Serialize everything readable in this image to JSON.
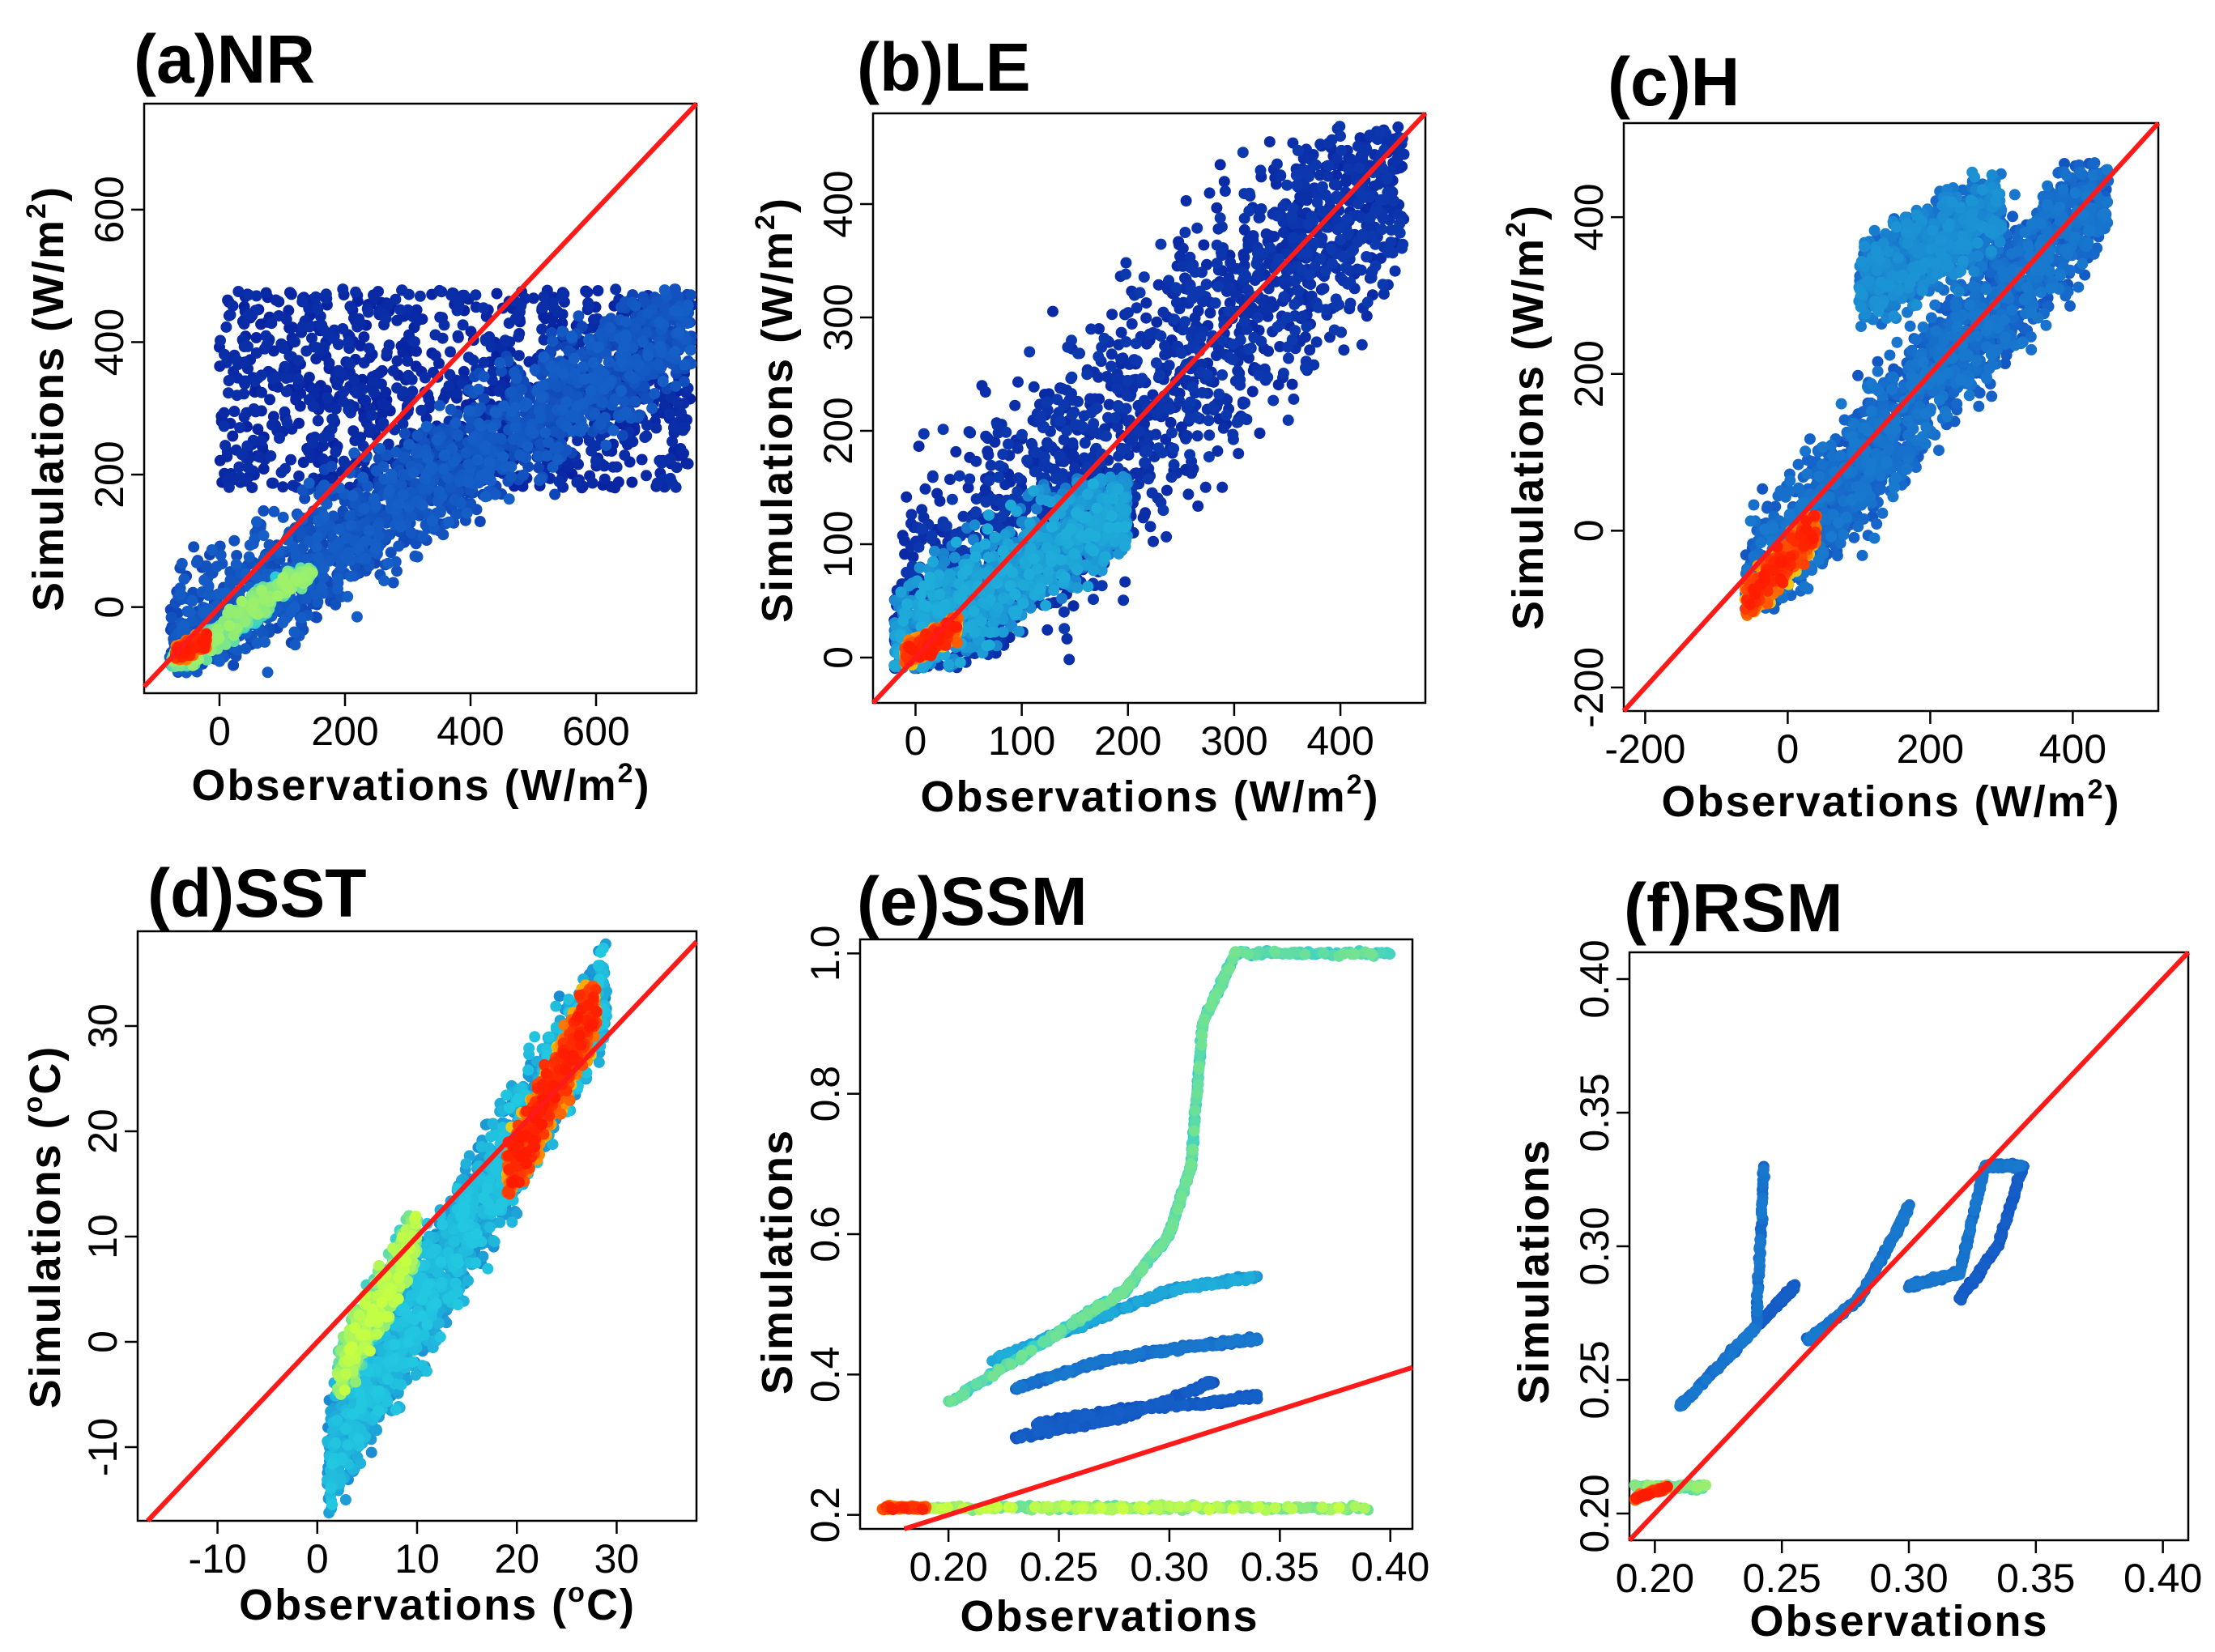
{
  "colors": {
    "identity_line": "#ff1a1a",
    "density_low": "#00008b",
    "density_mid_low": "#1560c8",
    "density_mid": "#22c8e0",
    "density_mid_high": "#c8ff40",
    "density_high": "#ffa000",
    "density_peak": "#ff1a00"
  },
  "chart_data": [
    {
      "id": "a",
      "type": "scatter",
      "title": "(a)NR",
      "xlabel": "Observations (W/m",
      "xlabel_sup": "2",
      "xlabel_end": ")",
      "ylabel": "Simulations (W/m",
      "ylabel_sup": "2",
      "ylabel_end": ")",
      "xlim": [
        -120,
        760
      ],
      "ylim": [
        -130,
        760
      ],
      "xticks": [
        0,
        200,
        400,
        600
      ],
      "xtick_labels": [
        "0",
        "200",
        "400",
        "600"
      ],
      "yticks": [
        0,
        200,
        400,
        600
      ],
      "ytick_labels": [
        "0",
        "200",
        "400",
        "600"
      ],
      "reference_line": "1:1",
      "clusters": [
        {
          "x": [
            -80,
            760
          ],
          "y": [
            -100,
            480
          ],
          "n": 1900,
          "slope": 0.6,
          "spread": 90,
          "density": 0.2
        },
        {
          "x": [
            0,
            760
          ],
          "y": [
            180,
            480
          ],
          "n": 1100,
          "slope": 0.0,
          "spread": 0,
          "density": 0.1
        },
        {
          "x": [
            -80,
            150
          ],
          "y": [
            -90,
            60
          ],
          "n": 500,
          "slope": 0.7,
          "spread": 20,
          "density": 0.55
        },
        {
          "x": [
            -70,
            -20
          ],
          "y": [
            -80,
            -40
          ],
          "n": 350,
          "slope": 0.5,
          "spread": 12,
          "density": 1.0
        }
      ]
    },
    {
      "id": "b",
      "type": "scatter",
      "title": "(b)LE",
      "xlabel": "Observations (W/m",
      "xlabel_sup": "2",
      "xlabel_end": ")",
      "ylabel": "Simulations (W/m",
      "ylabel_sup": "2",
      "ylabel_end": ")",
      "xlim": [
        -40,
        480
      ],
      "ylim": [
        -40,
        480
      ],
      "xticks": [
        0,
        100,
        200,
        300,
        400
      ],
      "xtick_labels": [
        "0",
        "100",
        "200",
        "300",
        "400"
      ],
      "yticks": [
        0,
        100,
        200,
        300,
        400
      ],
      "ytick_labels": [
        "0",
        "100",
        "200",
        "300",
        "400"
      ],
      "reference_line": "1:1",
      "clusters": [
        {
          "x": [
            -20,
            460
          ],
          "y": [
            -10,
            470
          ],
          "n": 1800,
          "slope": 0.9,
          "spread": 110,
          "density": 0.12
        },
        {
          "x": [
            -20,
            200
          ],
          "y": [
            -10,
            160
          ],
          "n": 1200,
          "slope": 0.6,
          "spread": 45,
          "density": 0.35
        },
        {
          "x": [
            -10,
            40
          ],
          "y": [
            -10,
            40
          ],
          "n": 350,
          "slope": 0.5,
          "spread": 10,
          "density": 1.0
        }
      ]
    },
    {
      "id": "c",
      "type": "scatter",
      "title": "(c)H",
      "xlabel": "Observations (W/m",
      "xlabel_sup": "2",
      "xlabel_end": ")",
      "ylabel": "Simulations (W/m",
      "ylabel_sup": "2",
      "ylabel_end": ")",
      "xlim": [
        -230,
        520
      ],
      "ylim": [
        -230,
        520
      ],
      "xticks": [
        -200,
        0,
        200,
        400
      ],
      "xtick_labels": [
        "-200",
        "0",
        "200",
        "400"
      ],
      "yticks": [
        -200,
        0,
        200,
        400
      ],
      "ytick_labels": [
        "-200",
        "0",
        "200",
        "400"
      ],
      "reference_line": "1:1",
      "clusters": [
        {
          "x": [
            -60,
            450
          ],
          "y": [
            -100,
            470
          ],
          "n": 2000,
          "slope": 1.05,
          "spread": 80,
          "density": 0.25
        },
        {
          "x": [
            100,
            300
          ],
          "y": [
            250,
            470
          ],
          "n": 900,
          "slope": 0.5,
          "spread": 50,
          "density": 0.3
        },
        {
          "x": [
            -60,
            40
          ],
          "y": [
            -110,
            20
          ],
          "n": 450,
          "slope": 1.0,
          "spread": 25,
          "density": 1.0
        }
      ]
    },
    {
      "id": "d",
      "type": "scatter",
      "title": "(d)SST",
      "xlabel": "Observations (",
      "xlabel_sup": "o",
      "xlabel_end": "C)",
      "ylabel": "Simulations (",
      "ylabel_sup": "o",
      "ylabel_end": "C)",
      "xlim": [
        -18,
        38
      ],
      "ylim": [
        -17,
        39
      ],
      "xticks": [
        -10,
        0,
        10,
        20,
        30
      ],
      "xtick_labels": [
        "-10",
        "0",
        "10",
        "20",
        "30"
      ],
      "yticks": [
        -10,
        0,
        10,
        20,
        30
      ],
      "ytick_labels": [
        "-10",
        "0",
        "10",
        "20",
        "30"
      ],
      "reference_line": "1:1",
      "clusters": [
        {
          "x": [
            1,
            29
          ],
          "y": [
            -17,
            39
          ],
          "n": 2200,
          "slope": 1.6,
          "spread": 5,
          "density": 0.4
        },
        {
          "x": [
            2,
            10
          ],
          "y": [
            -5,
            12
          ],
          "n": 500,
          "slope": 1.8,
          "spread": 3,
          "density": 0.6
        },
        {
          "x": [
            19,
            28
          ],
          "y": [
            14,
            34
          ],
          "n": 900,
          "slope": 1.9,
          "spread": 3,
          "density": 1.0
        }
      ]
    },
    {
      "id": "e",
      "type": "scatter",
      "title": "(e)SSM",
      "xlabel": "Observations",
      "xlabel_sup": "",
      "xlabel_end": "",
      "ylabel": "Simulations",
      "ylabel_sup": "",
      "ylabel_end": "",
      "xlim": [
        0.16,
        0.41
      ],
      "ylim": [
        0.18,
        1.02
      ],
      "xticks": [
        0.2,
        0.25,
        0.3,
        0.35,
        0.4
      ],
      "xtick_labels": [
        "0.20",
        "0.25",
        "0.30",
        "0.35",
        "0.40"
      ],
      "yticks": [
        0.2,
        0.4,
        0.6,
        0.8,
        1.0
      ],
      "ytick_labels": [
        "0.2",
        "0.4",
        "0.6",
        "0.8",
        "1.0"
      ],
      "reference_line": "1:1",
      "curves": [
        {
          "points": [
            [
              0.2,
              0.36
            ],
            [
              0.25,
              0.46
            ],
            [
              0.28,
              0.52
            ],
            [
              0.3,
              0.6
            ],
            [
              0.31,
              0.7
            ],
            [
              0.315,
              0.9
            ],
            [
              0.33,
              1.0
            ],
            [
              0.4,
              1.0
            ]
          ],
          "density": 0.5
        },
        {
          "points": [
            [
              0.22,
              0.42
            ],
            [
              0.26,
              0.47
            ],
            [
              0.3,
              0.52
            ],
            [
              0.34,
              0.54
            ]
          ],
          "density": 0.35
        },
        {
          "points": [
            [
              0.23,
              0.38
            ],
            [
              0.27,
              0.42
            ],
            [
              0.31,
              0.44
            ],
            [
              0.34,
              0.45
            ]
          ],
          "density": 0.25
        },
        {
          "points": [
            [
              0.24,
              0.33
            ],
            [
              0.28,
              0.35
            ],
            [
              0.32,
              0.36
            ],
            [
              0.34,
              0.37
            ]
          ],
          "density": 0.2
        },
        {
          "points": [
            [
              0.23,
              0.31
            ],
            [
              0.28,
              0.34
            ],
            [
              0.32,
              0.39
            ]
          ],
          "density": 0.2
        },
        {
          "points": [
            [
              0.17,
              0.21
            ],
            [
              0.25,
              0.21
            ],
            [
              0.3,
              0.21
            ],
            [
              0.39,
              0.21
            ]
          ],
          "density": 0.6
        },
        {
          "points": [
            [
              0.17,
              0.21
            ],
            [
              0.19,
              0.21
            ]
          ],
          "density": 1.0
        }
      ]
    },
    {
      "id": "f",
      "type": "scatter",
      "title": "(f)RSM",
      "xlabel": "Observations",
      "xlabel_sup": "",
      "xlabel_end": "",
      "ylabel": "Simulations",
      "ylabel_sup": "",
      "ylabel_end": "",
      "xlim": [
        0.19,
        0.41
      ],
      "ylim": [
        0.19,
        0.41
      ],
      "xticks": [
        0.2,
        0.25,
        0.3,
        0.35,
        0.4
      ],
      "xtick_labels": [
        "0.20",
        "0.25",
        "0.30",
        "0.35",
        "0.40"
      ],
      "yticks": [
        0.2,
        0.25,
        0.3,
        0.35,
        0.4
      ],
      "ytick_labels": [
        "0.20",
        "0.25",
        "0.30",
        "0.35",
        "0.40"
      ],
      "reference_line": "1:1",
      "curves": [
        {
          "points": [
            [
              0.21,
              0.24
            ],
            [
              0.23,
              0.26
            ],
            [
              0.24,
              0.27
            ],
            [
              0.243,
              0.33
            ]
          ],
          "density": 0.25
        },
        {
          "points": [
            [
              0.24,
              0.27
            ],
            [
              0.25,
              0.28
            ],
            [
              0.255,
              0.285
            ]
          ],
          "density": 0.2
        },
        {
          "points": [
            [
              0.26,
              0.265
            ],
            [
              0.28,
              0.28
            ],
            [
              0.295,
              0.305
            ],
            [
              0.3,
              0.315
            ]
          ],
          "density": 0.25
        },
        {
          "points": [
            [
              0.3,
              0.285
            ],
            [
              0.32,
              0.29
            ],
            [
              0.33,
              0.33
            ],
            [
              0.345,
              0.33
            ]
          ],
          "density": 0.25
        },
        {
          "points": [
            [
              0.32,
              0.28
            ],
            [
              0.335,
              0.3
            ],
            [
              0.345,
              0.33
            ]
          ],
          "density": 0.2
        },
        {
          "points": [
            [
              0.19,
              0.21
            ],
            [
              0.22,
              0.21
            ]
          ],
          "density": 0.55
        },
        {
          "points": [
            [
              0.19,
              0.205
            ],
            [
              0.205,
              0.21
            ]
          ],
          "density": 1.0
        }
      ]
    }
  ]
}
